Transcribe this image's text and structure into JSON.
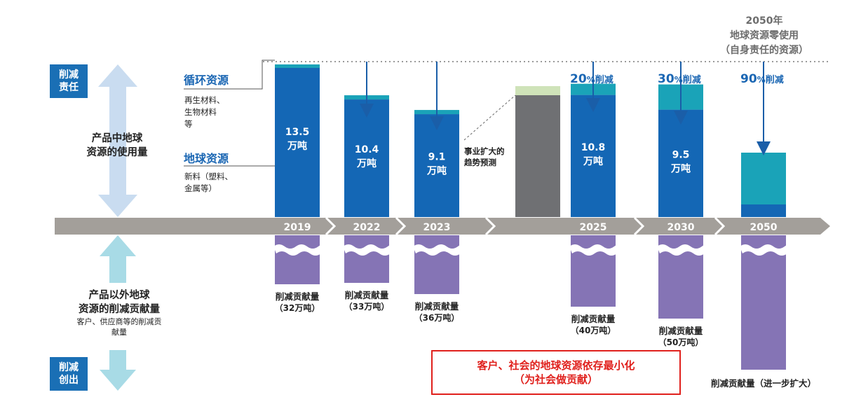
{
  "chart_data": {
    "type": "bar",
    "title_top": [
      "2050年",
      "地球资源零使用",
      "（自身责任的资源）"
    ],
    "categories": [
      "2019",
      "2022",
      "2023",
      "2025",
      "2030",
      "2050"
    ],
    "upper_bar_labels": [
      {
        "year": "2019",
        "value": "13.5",
        "unit": "万吨"
      },
      {
        "year": "2022",
        "value": "10.4",
        "unit": "万吨"
      },
      {
        "year": "2023",
        "value": "9.1",
        "unit": "万吨"
      },
      {
        "year": "2025",
        "value": "10.8",
        "unit": "万吨"
      },
      {
        "year": "2030",
        "value": "9.5",
        "unit": "万吨"
      },
      {
        "year": "2050",
        "value": "",
        "unit": ""
      }
    ],
    "upper_values": [
      13.5,
      10.4,
      9.1,
      10.8,
      9.5,
      null
    ],
    "reductions": [
      {
        "year": "2025",
        "num": "20",
        "pct": "%",
        "word": "削减"
      },
      {
        "year": "2030",
        "num": "30",
        "pct": "%",
        "word": "削减"
      },
      {
        "year": "2050",
        "num": "90",
        "pct": "%",
        "word": "削减"
      }
    ],
    "lower_labels": [
      {
        "year": "2019",
        "line1": "削减贡献量",
        "line2": "（32万吨）"
      },
      {
        "year": "2022",
        "line1": "削减贡献量",
        "line2": "（33万吨）"
      },
      {
        "year": "2023",
        "line1": "削减贡献量",
        "line2": "（36万吨）"
      },
      {
        "year": "2025",
        "line1": "削减贡献量",
        "line2": "（40万吨）"
      },
      {
        "year": "2030",
        "line1": "削减贡献量",
        "line2": "（50万吨）"
      },
      {
        "year": "2050",
        "line1": "削减贡献量（进一步扩大）",
        "line2": ""
      }
    ],
    "lower_values": [
      32,
      33,
      36,
      40,
      50,
      null
    ],
    "trend_note": [
      "事业扩大的",
      "趋势预测"
    ],
    "colors": {
      "blue": "#1467b5",
      "teal": "#1aa3b8",
      "gray": "#6f7073",
      "light_green": "#cfe3b9",
      "purple": "#8574b5",
      "axis": "#a39f9a",
      "badge": "#1a6fb5"
    }
  },
  "left": {
    "badge_top": [
      "削减",
      "责任"
    ],
    "badge_bottom": [
      "削减",
      "创出"
    ],
    "upper_desc": [
      "产品中地球",
      "资源的使用量"
    ],
    "lower_desc": [
      "产品以外地球",
      "资源的削减贡献量"
    ],
    "lower_note": [
      "客户、供应商等的削减贡",
      "献量"
    ]
  },
  "legend": {
    "recycled_title": "循环资源",
    "recycled_desc": [
      "再生材料、",
      "生物材料",
      "等"
    ],
    "earth_title": "地球资源",
    "earth_desc": [
      "新料（塑料、",
      "金属等）"
    ]
  },
  "callout": [
    "客户、社会的地球资源依存最小化",
    "（为社会做贡献）"
  ]
}
